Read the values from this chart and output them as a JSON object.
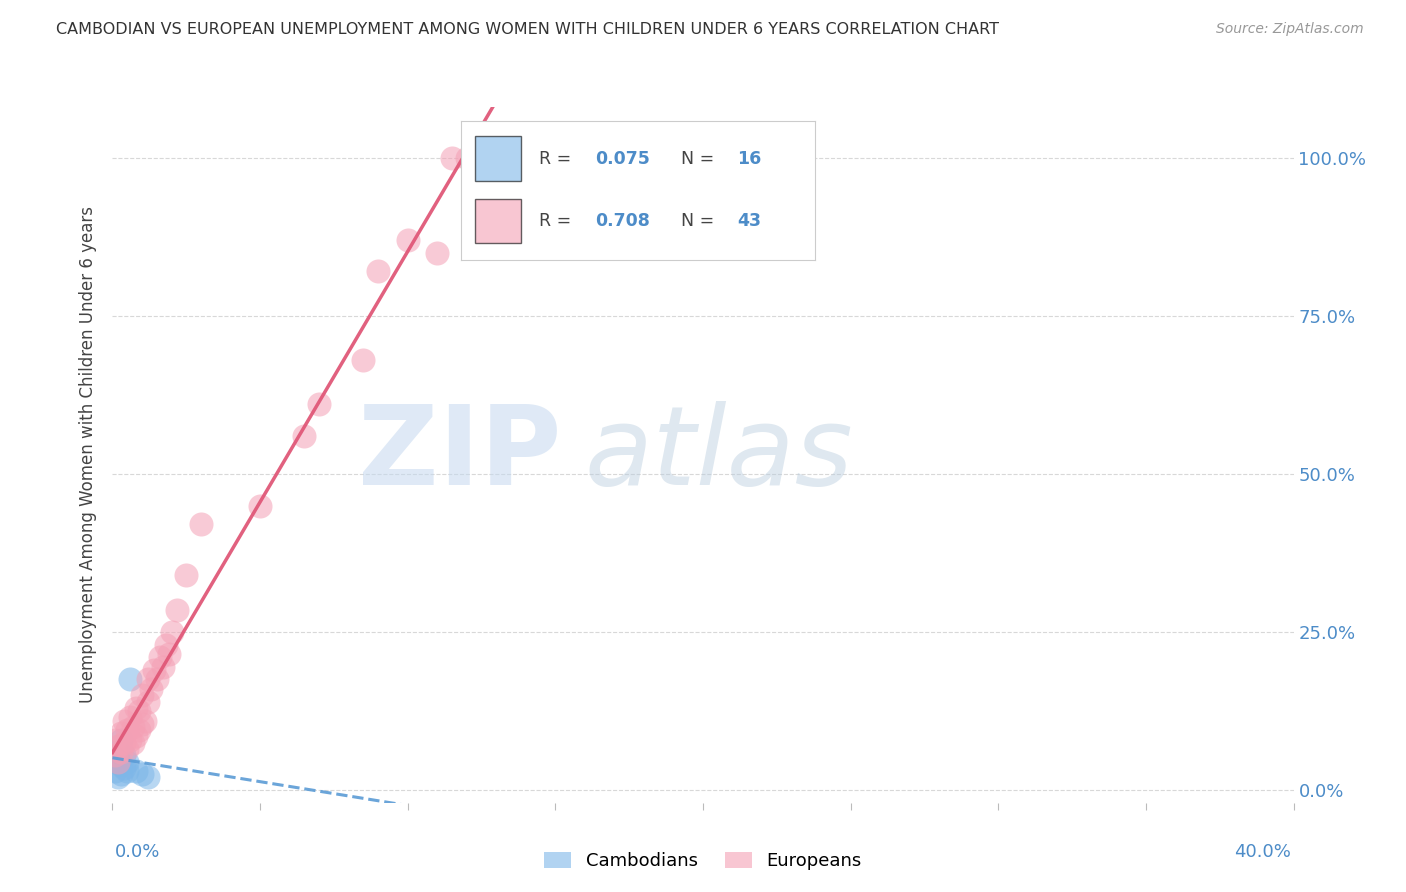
{
  "title": "CAMBODIAN VS EUROPEAN UNEMPLOYMENT AMONG WOMEN WITH CHILDREN UNDER 6 YEARS CORRELATION CHART",
  "source": "Source: ZipAtlas.com",
  "ylabel": "Unemployment Among Women with Children Under 6 years",
  "ytick_labels": [
    "0.0%",
    "25.0%",
    "50.0%",
    "75.0%",
    "100.0%"
  ],
  "ytick_values": [
    0.0,
    0.25,
    0.5,
    0.75,
    1.0
  ],
  "xtick_labels_right": "40.0%",
  "xtick_labels_left": "0.0%",
  "xlim": [
    0.0,
    0.4
  ],
  "ylim": [
    -0.02,
    1.08
  ],
  "cambodian_R": 0.075,
  "cambodian_N": 16,
  "european_R": 0.708,
  "european_N": 43,
  "cambodian_color": "#7eb7e8",
  "european_color": "#f4a0b5",
  "trendline_cambodian_color": "#5b9bd5",
  "trendline_european_color": "#e05878",
  "cambodian_points_x": [
    0.001,
    0.001,
    0.002,
    0.002,
    0.002,
    0.003,
    0.003,
    0.003,
    0.004,
    0.004,
    0.005,
    0.005,
    0.006,
    0.008,
    0.01,
    0.012
  ],
  "cambodian_points_y": [
    0.03,
    0.05,
    0.02,
    0.045,
    0.06,
    0.025,
    0.04,
    0.08,
    0.035,
    0.055,
    0.03,
    0.045,
    0.175,
    0.03,
    0.025,
    0.02
  ],
  "european_points_x": [
    0.001,
    0.001,
    0.002,
    0.002,
    0.003,
    0.003,
    0.004,
    0.004,
    0.005,
    0.005,
    0.006,
    0.006,
    0.007,
    0.007,
    0.008,
    0.008,
    0.009,
    0.009,
    0.01,
    0.01,
    0.011,
    0.012,
    0.012,
    0.013,
    0.014,
    0.015,
    0.016,
    0.017,
    0.018,
    0.019,
    0.02,
    0.022,
    0.025,
    0.03,
    0.05,
    0.065,
    0.07,
    0.085,
    0.09,
    0.1,
    0.11,
    0.115,
    0.12
  ],
  "european_points_y": [
    0.055,
    0.08,
    0.045,
    0.07,
    0.06,
    0.09,
    0.075,
    0.11,
    0.065,
    0.095,
    0.08,
    0.115,
    0.075,
    0.1,
    0.085,
    0.13,
    0.095,
    0.125,
    0.105,
    0.15,
    0.11,
    0.14,
    0.175,
    0.16,
    0.19,
    0.175,
    0.21,
    0.195,
    0.23,
    0.215,
    0.25,
    0.285,
    0.34,
    0.42,
    0.45,
    0.56,
    0.61,
    0.68,
    0.82,
    0.87,
    0.85,
    1.0,
    1.0
  ],
  "background_color": "#ffffff",
  "grid_color": "#d8d8d8",
  "watermark_zip_color": "#c5d8ef",
  "watermark_atlas_color": "#b8ccde"
}
